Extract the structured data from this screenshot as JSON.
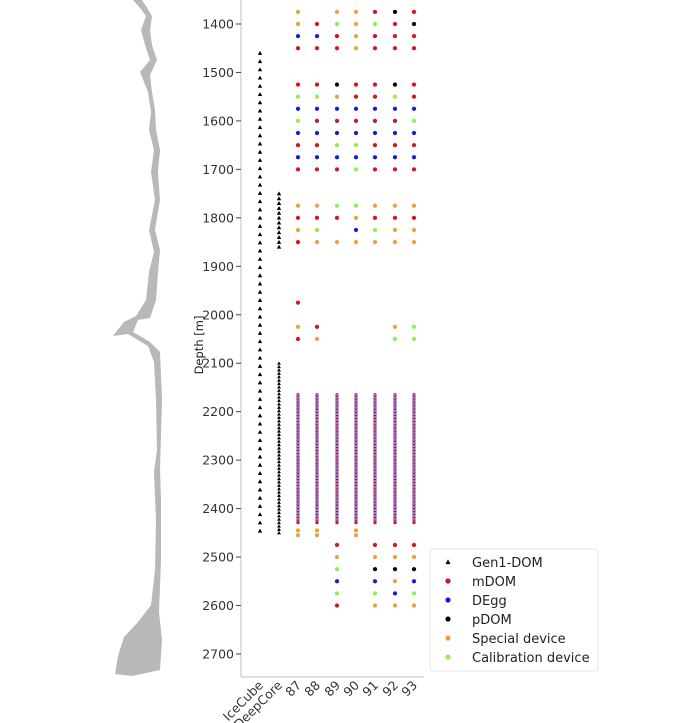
{
  "chart_data": {
    "type": "scatter",
    "ylabel": "Depth [m]",
    "ylim": [
      1350,
      2750
    ],
    "y_inverted": true,
    "yticks": [
      1400,
      1500,
      1600,
      1700,
      1800,
      1900,
      2000,
      2100,
      2200,
      2300,
      2400,
      2500,
      2600,
      2700
    ],
    "categories": [
      "IceCube",
      "DeepCore",
      "87",
      "88",
      "89",
      "90",
      "91",
      "92",
      "93"
    ],
    "grid": false,
    "legend_position": "bottom-right",
    "legend": [
      {
        "key": "gen1",
        "label": "Gen1-DOM",
        "marker": "triangle"
      },
      {
        "key": "R",
        "label": "mDOM",
        "marker": "circle"
      },
      {
        "key": "B",
        "label": "DEgg",
        "marker": "circle"
      },
      {
        "key": "K",
        "label": "pDOM",
        "marker": "circle"
      },
      {
        "key": "O",
        "label": "Special device",
        "marker": "circle"
      },
      {
        "key": "G",
        "label": "Calibration device",
        "marker": "circle"
      }
    ],
    "colors": {
      "gen1": "#000000",
      "R": "#d0161e",
      "B": "#1a1ad4",
      "K": "#000000",
      "O": "#e8a33a",
      "G": "#8ef04a",
      "profile": "#b8b8b8"
    },
    "gen1_strings": [
      {
        "category": "IceCube",
        "from": 1460,
        "to": 2450,
        "spacing": 17
      },
      {
        "category": "DeepCore",
        "from": 1750,
        "to": 1860,
        "spacing": 10
      },
      {
        "category": "DeepCore",
        "from": 2100,
        "to": 2450,
        "spacing": 7
      }
    ],
    "upgrade_columns": [
      "87",
      "88",
      "89",
      "90",
      "91",
      "92",
      "93"
    ],
    "upgrade_rows": [
      {
        "depth": 1375,
        "types": [
          "O",
          "",
          "O",
          "O",
          "R",
          "K",
          "R"
        ]
      },
      {
        "depth": 1400,
        "types": [
          "O",
          "R",
          "G",
          "O",
          "G",
          "R",
          "K"
        ]
      },
      {
        "depth": 1425,
        "types": [
          "B",
          "B",
          "R",
          "O",
          "R",
          "R",
          "R"
        ]
      },
      {
        "depth": 1450,
        "types": [
          "R",
          "R",
          "R",
          "O",
          "R",
          "R",
          "R"
        ]
      },
      {
        "depth": 1525,
        "types": [
          "R",
          "R",
          "K",
          "R",
          "R",
          "K",
          "R"
        ]
      },
      {
        "depth": 1550,
        "types": [
          "G",
          "G",
          "O",
          "R",
          "R",
          "G",
          "R"
        ]
      },
      {
        "depth": 1575,
        "types": [
          "B",
          "B",
          "B",
          "B",
          "B",
          "B",
          "B"
        ]
      },
      {
        "depth": 1600,
        "types": [
          "G",
          "R",
          "R",
          "R",
          "R",
          "R",
          "G"
        ]
      },
      {
        "depth": 1625,
        "types": [
          "B",
          "B",
          "B",
          "B",
          "B",
          "B",
          "B"
        ]
      },
      {
        "depth": 1650,
        "types": [
          "R",
          "R",
          "G",
          "G",
          "R",
          "R",
          "R"
        ]
      },
      {
        "depth": 1675,
        "types": [
          "B",
          "B",
          "B",
          "B",
          "B",
          "B",
          "B"
        ]
      },
      {
        "depth": 1700,
        "types": [
          "R",
          "R",
          "R",
          "G",
          "R",
          "R",
          "R"
        ]
      },
      {
        "depth": 1775,
        "types": [
          "O",
          "O",
          "G",
          "G",
          "O",
          "O",
          "O"
        ]
      },
      {
        "depth": 1800,
        "types": [
          "R",
          "R",
          "R",
          "O",
          "R",
          "R",
          "R"
        ]
      },
      {
        "depth": 1825,
        "types": [
          "O",
          "G",
          "",
          "B",
          "G",
          "O",
          "O"
        ]
      },
      {
        "depth": 1850,
        "types": [
          "R",
          "O",
          "O",
          "O",
          "O",
          "O",
          "O"
        ]
      },
      {
        "depth": 1975,
        "types": [
          "R",
          "",
          "",
          "",
          "",
          "",
          ""
        ]
      },
      {
        "depth": 2025,
        "types": [
          "O",
          "R",
          "",
          "",
          "",
          "O",
          "G"
        ]
      },
      {
        "depth": 2050,
        "types": [
          "R",
          "O",
          "",
          "",
          "",
          "G",
          "G"
        ]
      },
      {
        "depth": 2445,
        "types": [
          "O",
          "O",
          "",
          "O",
          "",
          "",
          ""
        ]
      },
      {
        "depth": 2455,
        "types": [
          "O",
          "O",
          "",
          "O",
          "",
          "",
          ""
        ]
      },
      {
        "depth": 2475,
        "types": [
          "",
          "",
          "R",
          "",
          "R",
          "R",
          "R"
        ]
      },
      {
        "depth": 2500,
        "types": [
          "",
          "",
          "O",
          "",
          "O",
          "O",
          "O"
        ]
      },
      {
        "depth": 2525,
        "types": [
          "",
          "",
          "G",
          "",
          "K",
          "K",
          "K"
        ]
      },
      {
        "depth": 2550,
        "types": [
          "",
          "",
          "B",
          "",
          "B",
          "O",
          "B"
        ]
      },
      {
        "depth": 2575,
        "types": [
          "",
          "",
          "G",
          "",
          "G",
          "B",
          "G"
        ]
      },
      {
        "depth": 2600,
        "types": [
          "",
          "",
          "R",
          "",
          "O",
          "O",
          "O"
        ]
      }
    ],
    "dense_segment": {
      "from": 2165,
      "to": 2430,
      "spacing": 3,
      "pattern": [
        "R",
        "B"
      ]
    }
  }
}
